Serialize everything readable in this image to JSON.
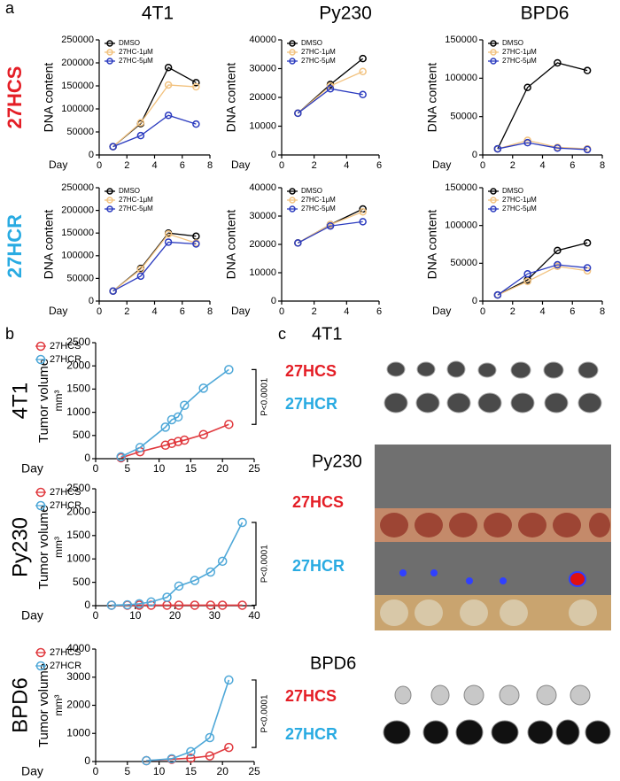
{
  "panel_labels": [
    "a",
    "b",
    "c"
  ],
  "panel_a": {
    "columns": [
      "4T1",
      "Py230",
      "BPD6"
    ],
    "rows": [
      "27HCS",
      "27HCR"
    ]
  },
  "panel_c": {
    "sections": [
      {
        "title": "4T1",
        "rows": [
          "27HCS",
          "27HCR"
        ]
      },
      {
        "title": "Py230",
        "rows": [
          "27HCS",
          "27HCR"
        ]
      },
      {
        "title": "BPD6",
        "rows": [
          "27HCS",
          "27HCR"
        ]
      }
    ]
  },
  "chart_data": [
    {
      "type": "line",
      "x_label": "Day",
      "y_label": "DNA content",
      "x": [
        1,
        3,
        5,
        7
      ],
      "xlim": [
        0,
        8
      ],
      "xticks": [
        0,
        2,
        4,
        6,
        8
      ],
      "ylim": [
        0,
        250000
      ],
      "yticks": [
        0,
        50000,
        100000,
        150000,
        200000,
        250000
      ],
      "series": [
        {
          "name": "DMSO",
          "color": "#000000",
          "values": [
            18000,
            68000,
            190000,
            157000
          ]
        },
        {
          "name": "27HC-1μM",
          "color": "#f2c27f",
          "values": [
            18000,
            70000,
            152000,
            148000
          ]
        },
        {
          "name": "27HC-5μM",
          "color": "#2b3bbf",
          "values": [
            18000,
            42000,
            86000,
            67000
          ]
        }
      ]
    },
    {
      "type": "line",
      "x_label": "Day",
      "y_label": "DNA content",
      "x": [
        1,
        3,
        5
      ],
      "xlim": [
        0,
        6
      ],
      "xticks": [
        0,
        2,
        4,
        6
      ],
      "ylim": [
        0,
        40000
      ],
      "yticks": [
        0,
        10000,
        20000,
        30000,
        40000
      ],
      "series": [
        {
          "name": "DMSO",
          "color": "#000000",
          "values": [
            14500,
            24500,
            33500
          ]
        },
        {
          "name": "27HC-1μM",
          "color": "#f2c27f",
          "values": [
            14500,
            24000,
            29000
          ]
        },
        {
          "name": "27HC-5μM",
          "color": "#2b3bbf",
          "values": [
            14500,
            23000,
            21000
          ]
        }
      ]
    },
    {
      "type": "line",
      "x_label": "Day",
      "y_label": "DNA content",
      "x": [
        1,
        3,
        5,
        7
      ],
      "xlim": [
        0,
        8
      ],
      "xticks": [
        0,
        2,
        4,
        6,
        8
      ],
      "ylim": [
        0,
        150000
      ],
      "yticks": [
        0,
        50000,
        100000,
        150000
      ],
      "series": [
        {
          "name": "DMSO",
          "color": "#000000",
          "values": [
            8000,
            88000,
            120000,
            110000
          ]
        },
        {
          "name": "27HC-1μM",
          "color": "#f2c27f",
          "values": [
            8000,
            19000,
            10000,
            8000
          ]
        },
        {
          "name": "27HC-5μM",
          "color": "#2b3bbf",
          "values": [
            8000,
            16000,
            9000,
            7000
          ]
        }
      ]
    },
    {
      "type": "line",
      "x_label": "Day",
      "y_label": "DNA content",
      "x": [
        1,
        3,
        5,
        7
      ],
      "xlim": [
        0,
        8
      ],
      "xticks": [
        0,
        2,
        4,
        6,
        8
      ],
      "ylim": [
        0,
        250000
      ],
      "yticks": [
        0,
        50000,
        100000,
        150000,
        200000,
        250000
      ],
      "series": [
        {
          "name": "DMSO",
          "color": "#000000",
          "values": [
            22000,
            72000,
            150000,
            143000
          ]
        },
        {
          "name": "27HC-1μM",
          "color": "#f2c27f",
          "values": [
            22000,
            70000,
            148000,
            128000
          ]
        },
        {
          "name": "27HC-5μM",
          "color": "#2b3bbf",
          "values": [
            22000,
            55000,
            130000,
            126000
          ]
        }
      ]
    },
    {
      "type": "line",
      "x_label": "Day",
      "y_label": "DNA content",
      "x": [
        1,
        3,
        5
      ],
      "xlim": [
        0,
        6
      ],
      "xticks": [
        0,
        2,
        4,
        6
      ],
      "ylim": [
        0,
        40000
      ],
      "yticks": [
        0,
        10000,
        20000,
        30000,
        40000
      ],
      "series": [
        {
          "name": "DMSO",
          "color": "#000000",
          "values": [
            20500,
            27000,
            32500
          ]
        },
        {
          "name": "27HC-1μM",
          "color": "#f2c27f",
          "values": [
            20500,
            27000,
            31500
          ]
        },
        {
          "name": "27HC-5μM",
          "color": "#2b3bbf",
          "values": [
            20500,
            26500,
            28000
          ]
        }
      ]
    },
    {
      "type": "line",
      "x_label": "Day",
      "y_label": "DNA content",
      "x": [
        1,
        3,
        5,
        7
      ],
      "xlim": [
        0,
        8
      ],
      "xticks": [
        0,
        2,
        4,
        6,
        8
      ],
      "ylim": [
        0,
        150000
      ],
      "yticks": [
        0,
        50000,
        100000,
        150000
      ],
      "series": [
        {
          "name": "DMSO",
          "color": "#000000",
          "values": [
            8000,
            28000,
            67000,
            77000
          ]
        },
        {
          "name": "27HC-1μM",
          "color": "#f2c27f",
          "values": [
            8000,
            26000,
            46000,
            40000
          ]
        },
        {
          "name": "27HC-5μM",
          "color": "#2b3bbf",
          "values": [
            8000,
            36000,
            48000,
            44000
          ]
        }
      ]
    },
    {
      "type": "line",
      "title": "4T1",
      "x_label": "Day",
      "y_label": "Tumor volume",
      "y_unit": "mm³",
      "annotation": "P<0.0001",
      "xlim": [
        0,
        25
      ],
      "xticks": [
        0,
        5,
        10,
        15,
        20,
        25
      ],
      "ylim": [
        0,
        2500
      ],
      "yticks": [
        0,
        500,
        1000,
        1500,
        2000,
        2500
      ],
      "series": [
        {
          "name": "27HCS",
          "color": "#e0393e",
          "x": [
            4,
            7,
            11,
            12,
            13,
            14,
            17,
            21
          ],
          "values": [
            20,
            150,
            290,
            330,
            370,
            400,
            520,
            740
          ]
        },
        {
          "name": "27HCR",
          "color": "#4fa8d8",
          "x": [
            4,
            7,
            11,
            12,
            13,
            14,
            17,
            21
          ],
          "values": [
            40,
            240,
            680,
            840,
            900,
            1150,
            1520,
            1920
          ]
        }
      ]
    },
    {
      "type": "line",
      "title": "Py230",
      "x_label": "Day",
      "y_label": "Tumor volume",
      "y_unit": "mm³",
      "annotation": "P<0.0001",
      "xlim": [
        0,
        40
      ],
      "xticks": [
        0,
        10,
        20,
        30,
        40
      ],
      "ylim": [
        0,
        2500
      ],
      "yticks": [
        0,
        500,
        1000,
        1500,
        2000,
        2500
      ],
      "series": [
        {
          "name": "27HCS",
          "color": "#e0393e",
          "x": [
            4,
            8,
            11,
            14,
            18,
            21,
            25,
            29,
            32,
            37
          ],
          "values": [
            10,
            10,
            10,
            10,
            10,
            10,
            10,
            10,
            10,
            10
          ]
        },
        {
          "name": "27HCR",
          "color": "#4fa8d8",
          "x": [
            4,
            8,
            11,
            14,
            18,
            21,
            25,
            29,
            32,
            37
          ],
          "values": [
            10,
            20,
            40,
            80,
            180,
            420,
            540,
            720,
            950,
            1780
          ]
        }
      ]
    },
    {
      "type": "line",
      "title": "BPD6",
      "x_label": "Day",
      "y_label": "Tumor volume",
      "y_unit": "mm³",
      "annotation": "P<0.0001",
      "xlim": [
        0,
        25
      ],
      "xticks": [
        0,
        5,
        10,
        15,
        20,
        25
      ],
      "ylim": [
        0,
        4000
      ],
      "yticks": [
        0,
        1000,
        2000,
        3000,
        4000
      ],
      "series": [
        {
          "name": "27HCS",
          "color": "#e0393e",
          "x": [
            8,
            12,
            15,
            18,
            21
          ],
          "values": [
            30,
            80,
            120,
            200,
            500
          ]
        },
        {
          "name": "27HCR",
          "color": "#4fa8d8",
          "x": [
            8,
            12,
            15,
            18,
            21
          ],
          "values": [
            30,
            100,
            350,
            850,
            2900
          ]
        }
      ]
    }
  ]
}
